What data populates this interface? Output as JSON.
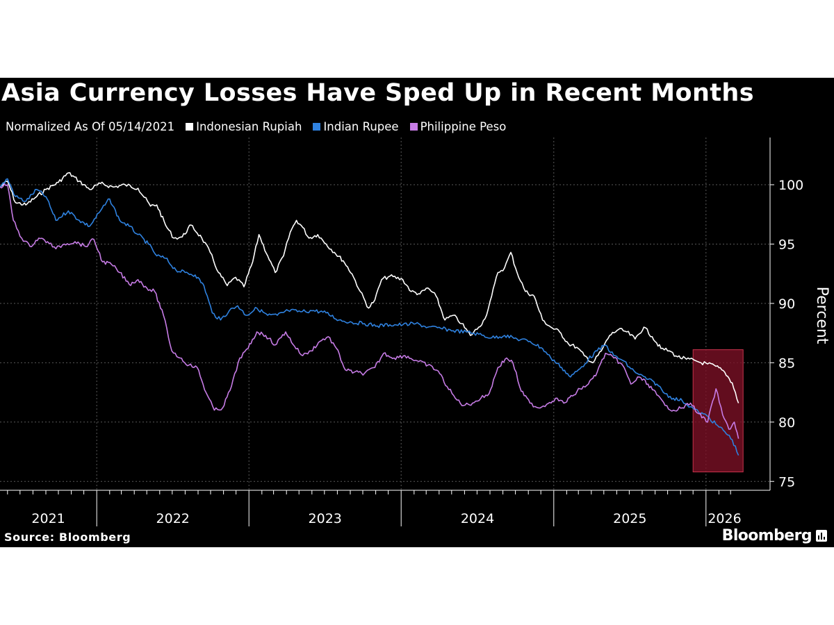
{
  "header": {
    "title": "Asia Currency Losses Have Sped Up in Recent Months",
    "note": "Normalized As Of 05/14/2021"
  },
  "footer": {
    "source": "Source: Bloomberg",
    "brand": "Bloomberg",
    "brand_icon": "bloomberg-chart-icon"
  },
  "colors": {
    "background": "#000000",
    "grid": "#5a5a5a",
    "axis": "#ffffff",
    "highlight_fill": "#7d1126",
    "highlight_stroke": "#c8334c"
  },
  "chart_data": {
    "type": "line",
    "title": "Asia Currency Losses Have Sped Up in Recent Months",
    "subtitle": "Normalized As Of 05/14/2021",
    "xlabel": "",
    "ylabel": "Percent",
    "y_axis_position": "right",
    "ylim": [
      73.5,
      103.8
    ],
    "xlim": [
      "2021-05-14",
      "2026-03-31"
    ],
    "yticks": [
      75,
      80,
      85,
      90,
      95,
      100
    ],
    "year_labels": [
      "2021",
      "2022",
      "2023",
      "2024",
      "2025",
      "2026"
    ],
    "grid": true,
    "legend_position": "top-left",
    "highlight": {
      "x": [
        "2025-12-01",
        "2026-03-31"
      ],
      "y": [
        75.8,
        86.1
      ],
      "label": ""
    },
    "series": [
      {
        "name": "Indonesian Rupiah",
        "color": "#ffffff",
        "points": [
          [
            "2021-05-14",
            99.8
          ],
          [
            "2021-06-01",
            100.3
          ],
          [
            "2021-06-20",
            98.5
          ],
          [
            "2021-07-15",
            98.3
          ],
          [
            "2021-08-10",
            99.0
          ],
          [
            "2021-09-01",
            99.6
          ],
          [
            "2021-10-01",
            100.2
          ],
          [
            "2021-10-25",
            101.0
          ],
          [
            "2021-11-20",
            100.3
          ],
          [
            "2021-12-15",
            99.6
          ],
          [
            "2022-01-10",
            100.1
          ],
          [
            "2022-02-10",
            99.8
          ],
          [
            "2022-03-10",
            100.0
          ],
          [
            "2022-04-10",
            99.7
          ],
          [
            "2022-05-10",
            98.2
          ],
          [
            "2022-05-25",
            98.3
          ],
          [
            "2022-06-15",
            96.6
          ],
          [
            "2022-07-05",
            95.5
          ],
          [
            "2022-07-25",
            95.6
          ],
          [
            "2022-08-15",
            96.6
          ],
          [
            "2022-09-10",
            95.5
          ],
          [
            "2022-09-30",
            94.3
          ],
          [
            "2022-10-20",
            92.6
          ],
          [
            "2022-11-10",
            91.5
          ],
          [
            "2022-11-30",
            92.2
          ],
          [
            "2022-12-20",
            91.4
          ],
          [
            "2023-01-10",
            93.5
          ],
          [
            "2023-01-25",
            95.8
          ],
          [
            "2023-02-15",
            94.0
          ],
          [
            "2023-03-05",
            92.6
          ],
          [
            "2023-03-25",
            94.0
          ],
          [
            "2023-04-10",
            96.0
          ],
          [
            "2023-04-25",
            97.0
          ],
          [
            "2023-05-10",
            96.4
          ],
          [
            "2023-05-25",
            95.5
          ],
          [
            "2023-06-15",
            95.8
          ],
          [
            "2023-07-05",
            95.0
          ],
          [
            "2023-07-25",
            94.3
          ],
          [
            "2023-08-15",
            93.6
          ],
          [
            "2023-09-05",
            92.5
          ],
          [
            "2023-09-25",
            91.0
          ],
          [
            "2023-10-15",
            89.6
          ],
          [
            "2023-10-30",
            90.3
          ],
          [
            "2023-11-15",
            92.0
          ],
          [
            "2023-12-05",
            92.3
          ],
          [
            "2024-01-05",
            92.0
          ],
          [
            "2024-01-25",
            91.0
          ],
          [
            "2024-02-15",
            90.8
          ],
          [
            "2024-03-05",
            91.3
          ],
          [
            "2024-03-25",
            90.6
          ],
          [
            "2024-04-15",
            88.6
          ],
          [
            "2024-05-05",
            89.0
          ],
          [
            "2024-05-25",
            88.3
          ],
          [
            "2024-06-15",
            87.3
          ],
          [
            "2024-07-05",
            88.0
          ],
          [
            "2024-07-20",
            88.7
          ],
          [
            "2024-08-05",
            90.6
          ],
          [
            "2024-08-20",
            92.6
          ],
          [
            "2024-09-05",
            93.0
          ],
          [
            "2024-09-20",
            94.3
          ],
          [
            "2024-10-05",
            92.6
          ],
          [
            "2024-10-25",
            91.0
          ],
          [
            "2024-11-15",
            90.6
          ],
          [
            "2024-12-05",
            88.6
          ],
          [
            "2024-12-25",
            88.0
          ],
          [
            "2025-01-15",
            87.6
          ],
          [
            "2025-02-05",
            86.6
          ],
          [
            "2025-02-25",
            86.3
          ],
          [
            "2025-03-15",
            85.6
          ],
          [
            "2025-04-05",
            85.0
          ],
          [
            "2025-04-25",
            86.0
          ],
          [
            "2025-05-15",
            87.3
          ],
          [
            "2025-06-05",
            87.8
          ],
          [
            "2025-06-25",
            87.6
          ],
          [
            "2025-07-15",
            87.0
          ],
          [
            "2025-08-05",
            88.0
          ],
          [
            "2025-08-25",
            87.2
          ],
          [
            "2025-09-15",
            86.2
          ],
          [
            "2025-10-05",
            86.0
          ],
          [
            "2025-10-25",
            85.5
          ],
          [
            "2025-11-15",
            85.3
          ],
          [
            "2025-12-05",
            85.2
          ],
          [
            "2025-12-20",
            85.0
          ],
          [
            "2026-01-05",
            84.9
          ],
          [
            "2026-01-25",
            84.7
          ],
          [
            "2026-02-15",
            84.2
          ],
          [
            "2026-03-05",
            83.3
          ],
          [
            "2026-03-20",
            81.6
          ]
        ]
      },
      {
        "name": "Indian Rupee",
        "color": "#2f82e0",
        "points": [
          [
            "2021-05-14",
            99.8
          ],
          [
            "2021-06-01",
            100.5
          ],
          [
            "2021-06-20",
            99.0
          ],
          [
            "2021-07-15",
            98.6
          ],
          [
            "2021-08-10",
            99.6
          ],
          [
            "2021-09-01",
            99.0
          ],
          [
            "2021-09-25",
            97.0
          ],
          [
            "2021-10-25",
            97.8
          ],
          [
            "2021-11-20",
            97.0
          ],
          [
            "2021-12-15",
            96.5
          ],
          [
            "2022-01-10",
            97.8
          ],
          [
            "2022-02-01",
            98.8
          ],
          [
            "2022-02-25",
            97.0
          ],
          [
            "2022-03-20",
            96.5
          ],
          [
            "2022-04-10",
            95.8
          ],
          [
            "2022-05-05",
            95.0
          ],
          [
            "2022-05-25",
            94.0
          ],
          [
            "2022-06-15",
            93.8
          ],
          [
            "2022-07-10",
            92.8
          ],
          [
            "2022-08-01",
            92.6
          ],
          [
            "2022-08-25",
            92.4
          ],
          [
            "2022-09-15",
            91.5
          ],
          [
            "2022-10-05",
            89.2
          ],
          [
            "2022-10-25",
            88.6
          ],
          [
            "2022-11-15",
            89.4
          ],
          [
            "2022-12-05",
            89.8
          ],
          [
            "2022-12-25",
            89.0
          ],
          [
            "2023-01-20",
            89.6
          ],
          [
            "2023-02-15",
            89.0
          ],
          [
            "2023-03-10",
            89.0
          ],
          [
            "2023-04-05",
            89.4
          ],
          [
            "2023-05-05",
            89.3
          ],
          [
            "2023-06-05",
            89.4
          ],
          [
            "2023-07-05",
            89.2
          ],
          [
            "2023-08-05",
            88.6
          ],
          [
            "2023-09-05",
            88.4
          ],
          [
            "2023-10-05",
            88.3
          ],
          [
            "2023-11-05",
            88.1
          ],
          [
            "2023-12-05",
            88.2
          ],
          [
            "2024-01-05",
            88.2
          ],
          [
            "2024-02-05",
            88.3
          ],
          [
            "2024-03-05",
            88.0
          ],
          [
            "2024-04-05",
            87.9
          ],
          [
            "2024-05-05",
            87.7
          ],
          [
            "2024-06-05",
            87.6
          ],
          [
            "2024-07-05",
            87.4
          ],
          [
            "2024-08-05",
            87.1
          ],
          [
            "2024-09-05",
            87.3
          ],
          [
            "2024-10-05",
            87.0
          ],
          [
            "2024-11-05",
            86.8
          ],
          [
            "2024-12-05",
            86.2
          ],
          [
            "2024-12-25",
            85.4
          ],
          [
            "2025-01-20",
            84.6
          ],
          [
            "2025-02-10",
            83.8
          ],
          [
            "2025-03-05",
            84.5
          ],
          [
            "2025-03-25",
            85.3
          ],
          [
            "2025-04-15",
            86.0
          ],
          [
            "2025-05-05",
            86.5
          ],
          [
            "2025-05-25",
            85.6
          ],
          [
            "2025-06-15",
            85.2
          ],
          [
            "2025-07-05",
            84.5
          ],
          [
            "2025-07-25",
            84.0
          ],
          [
            "2025-08-15",
            83.6
          ],
          [
            "2025-09-05",
            83.2
          ],
          [
            "2025-09-25",
            82.4
          ],
          [
            "2025-10-15",
            82.0
          ],
          [
            "2025-11-05",
            81.8
          ],
          [
            "2025-11-25",
            81.3
          ],
          [
            "2025-12-15",
            80.8
          ],
          [
            "2026-01-05",
            80.5
          ],
          [
            "2026-01-25",
            79.8
          ],
          [
            "2026-02-15",
            79.2
          ],
          [
            "2026-03-05",
            78.5
          ],
          [
            "2026-03-20",
            77.2
          ]
        ]
      },
      {
        "name": "Philippine Peso",
        "color": "#c77ce6",
        "points": [
          [
            "2021-05-14",
            99.8
          ],
          [
            "2021-06-01",
            100.0
          ],
          [
            "2021-06-15",
            97.0
          ],
          [
            "2021-07-05",
            95.5
          ],
          [
            "2021-07-25",
            94.8
          ],
          [
            "2021-08-15",
            95.5
          ],
          [
            "2021-09-05",
            95.2
          ],
          [
            "2021-09-25",
            94.6
          ],
          [
            "2021-10-15",
            95.0
          ],
          [
            "2021-11-10",
            95.2
          ],
          [
            "2021-12-05",
            94.8
          ],
          [
            "2021-12-25",
            95.4
          ],
          [
            "2022-01-15",
            93.5
          ],
          [
            "2022-02-05",
            93.3
          ],
          [
            "2022-02-25",
            92.6
          ],
          [
            "2022-03-20",
            91.6
          ],
          [
            "2022-04-10",
            92.0
          ],
          [
            "2022-05-01",
            91.3
          ],
          [
            "2022-05-20",
            91.0
          ],
          [
            "2022-06-10",
            89.0
          ],
          [
            "2022-06-30",
            86.0
          ],
          [
            "2022-07-20",
            85.4
          ],
          [
            "2022-08-10",
            84.8
          ],
          [
            "2022-08-30",
            84.6
          ],
          [
            "2022-09-20",
            82.5
          ],
          [
            "2022-10-10",
            81.0
          ],
          [
            "2022-10-30",
            81.2
          ],
          [
            "2022-11-20",
            83.0
          ],
          [
            "2022-12-10",
            85.4
          ],
          [
            "2022-12-30",
            86.2
          ],
          [
            "2023-01-20",
            87.6
          ],
          [
            "2023-02-10",
            87.3
          ],
          [
            "2023-03-05",
            86.5
          ],
          [
            "2023-03-30",
            87.6
          ],
          [
            "2023-04-20",
            86.4
          ],
          [
            "2023-05-10",
            85.6
          ],
          [
            "2023-05-30",
            86.0
          ],
          [
            "2023-06-20",
            86.8
          ],
          [
            "2023-07-10",
            87.2
          ],
          [
            "2023-07-30",
            86.2
          ],
          [
            "2023-08-20",
            84.4
          ],
          [
            "2023-09-10",
            84.2
          ],
          [
            "2023-10-05",
            84.1
          ],
          [
            "2023-10-30",
            84.6
          ],
          [
            "2023-11-20",
            85.8
          ],
          [
            "2023-12-15",
            85.4
          ],
          [
            "2024-01-10",
            85.6
          ],
          [
            "2024-02-05",
            85.2
          ],
          [
            "2024-03-05",
            84.8
          ],
          [
            "2024-03-30",
            84.3
          ],
          [
            "2024-04-20",
            83.0
          ],
          [
            "2024-05-10",
            82.0
          ],
          [
            "2024-05-30",
            81.4
          ],
          [
            "2024-06-20",
            81.6
          ],
          [
            "2024-07-10",
            82.0
          ],
          [
            "2024-07-30",
            82.4
          ],
          [
            "2024-08-20",
            84.6
          ],
          [
            "2024-09-10",
            85.4
          ],
          [
            "2024-09-25",
            85.0
          ],
          [
            "2024-10-15",
            82.6
          ],
          [
            "2024-11-05",
            81.6
          ],
          [
            "2024-11-25",
            81.2
          ],
          [
            "2024-12-15",
            81.5
          ],
          [
            "2025-01-05",
            82.0
          ],
          [
            "2025-01-25",
            81.6
          ],
          [
            "2025-02-15",
            82.2
          ],
          [
            "2025-03-05",
            82.8
          ],
          [
            "2025-03-25",
            83.2
          ],
          [
            "2025-04-15",
            84.2
          ],
          [
            "2025-05-05",
            85.8
          ],
          [
            "2025-05-25",
            85.4
          ],
          [
            "2025-06-15",
            84.8
          ],
          [
            "2025-07-05",
            83.2
          ],
          [
            "2025-07-25",
            83.8
          ],
          [
            "2025-08-15",
            83.2
          ],
          [
            "2025-09-05",
            82.3
          ],
          [
            "2025-09-25",
            81.4
          ],
          [
            "2025-10-15",
            81.0
          ],
          [
            "2025-11-05",
            81.2
          ],
          [
            "2025-11-25",
            81.6
          ],
          [
            "2025-12-15",
            80.7
          ],
          [
            "2026-01-05",
            80.0
          ],
          [
            "2026-01-25",
            82.8
          ],
          [
            "2026-02-10",
            80.6
          ],
          [
            "2026-02-25",
            79.4
          ],
          [
            "2026-03-10",
            80.0
          ],
          [
            "2026-03-20",
            78.6
          ]
        ]
      }
    ]
  }
}
